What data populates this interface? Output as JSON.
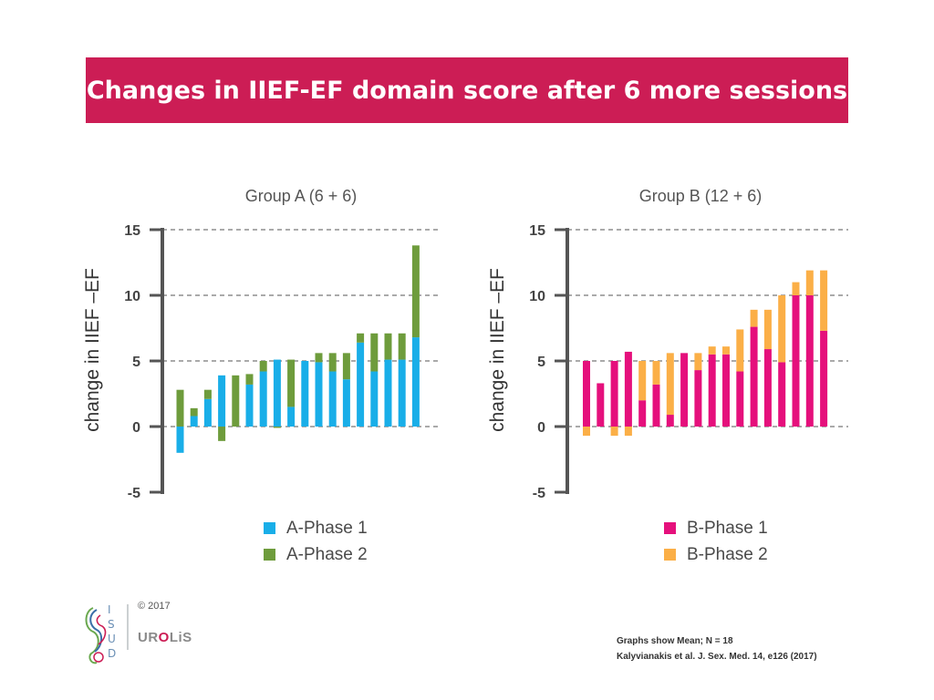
{
  "header": {
    "title": "Changes in IIEF-EF domain score after 6 more sessions"
  },
  "chart_data": [
    {
      "type": "bar",
      "stacked": true,
      "title": "Group A (6 + 6)",
      "ylabel": "change in IIEF –EF",
      "ylim": [
        -5,
        15
      ],
      "yticks": [
        15,
        10,
        5,
        0,
        -5
      ],
      "grid": true,
      "legend_position": "bottom",
      "series": [
        {
          "name": "A-Phase 1",
          "color": "#19aee8",
          "values": [
            -2,
            0.8,
            2.1,
            3.9,
            0,
            3.2,
            4.2,
            5.1,
            1.5,
            5.0,
            4.9,
            4.2,
            3.6,
            6.4,
            4.2,
            5.1,
            5.1,
            6.8
          ]
        },
        {
          "name": "A-Phase 2",
          "color": "#6e9c3c",
          "values": [
            2.8,
            0.6,
            0.7,
            -1.1,
            3.9,
            0.8,
            0.8,
            -0.1,
            3.6,
            0,
            0.7,
            1.4,
            2.0,
            0.7,
            2.9,
            2.0,
            2.0,
            7.0
          ]
        }
      ]
    },
    {
      "type": "bar",
      "stacked": true,
      "title": "Group B (12 + 6)",
      "ylabel": "change in IIEF –EF",
      "ylim": [
        -5,
        15
      ],
      "yticks": [
        15,
        10,
        5,
        0,
        -5
      ],
      "grid": true,
      "legend_position": "bottom",
      "series": [
        {
          "name": "B-Phase 1",
          "color": "#e5107c",
          "values": [
            5.0,
            3.3,
            5.0,
            5.7,
            2.0,
            3.2,
            0.9,
            5.6,
            4.3,
            5.5,
            5.5,
            4.2,
            7.6,
            5.9,
            4.9,
            10.0,
            10.0,
            7.3
          ]
        },
        {
          "name": "B-Phase 2",
          "color": "#fbaf47",
          "values": [
            -0.7,
            0,
            -0.7,
            -0.7,
            3.0,
            1.8,
            4.7,
            0,
            1.3,
            0.6,
            0.6,
            3.2,
            1.3,
            3.0,
            5.1,
            1.0,
            1.9,
            4.6
          ]
        }
      ]
    }
  ],
  "footer": {
    "copyright": "© 2017",
    "brand_pre": "UR",
    "brand_o": "O",
    "brand_post": "LiS",
    "note1": "Graphs show Mean; N = 18",
    "note2": "Kalyvianakis et al. J. Sex. Med. 14, e126 (2017)"
  }
}
